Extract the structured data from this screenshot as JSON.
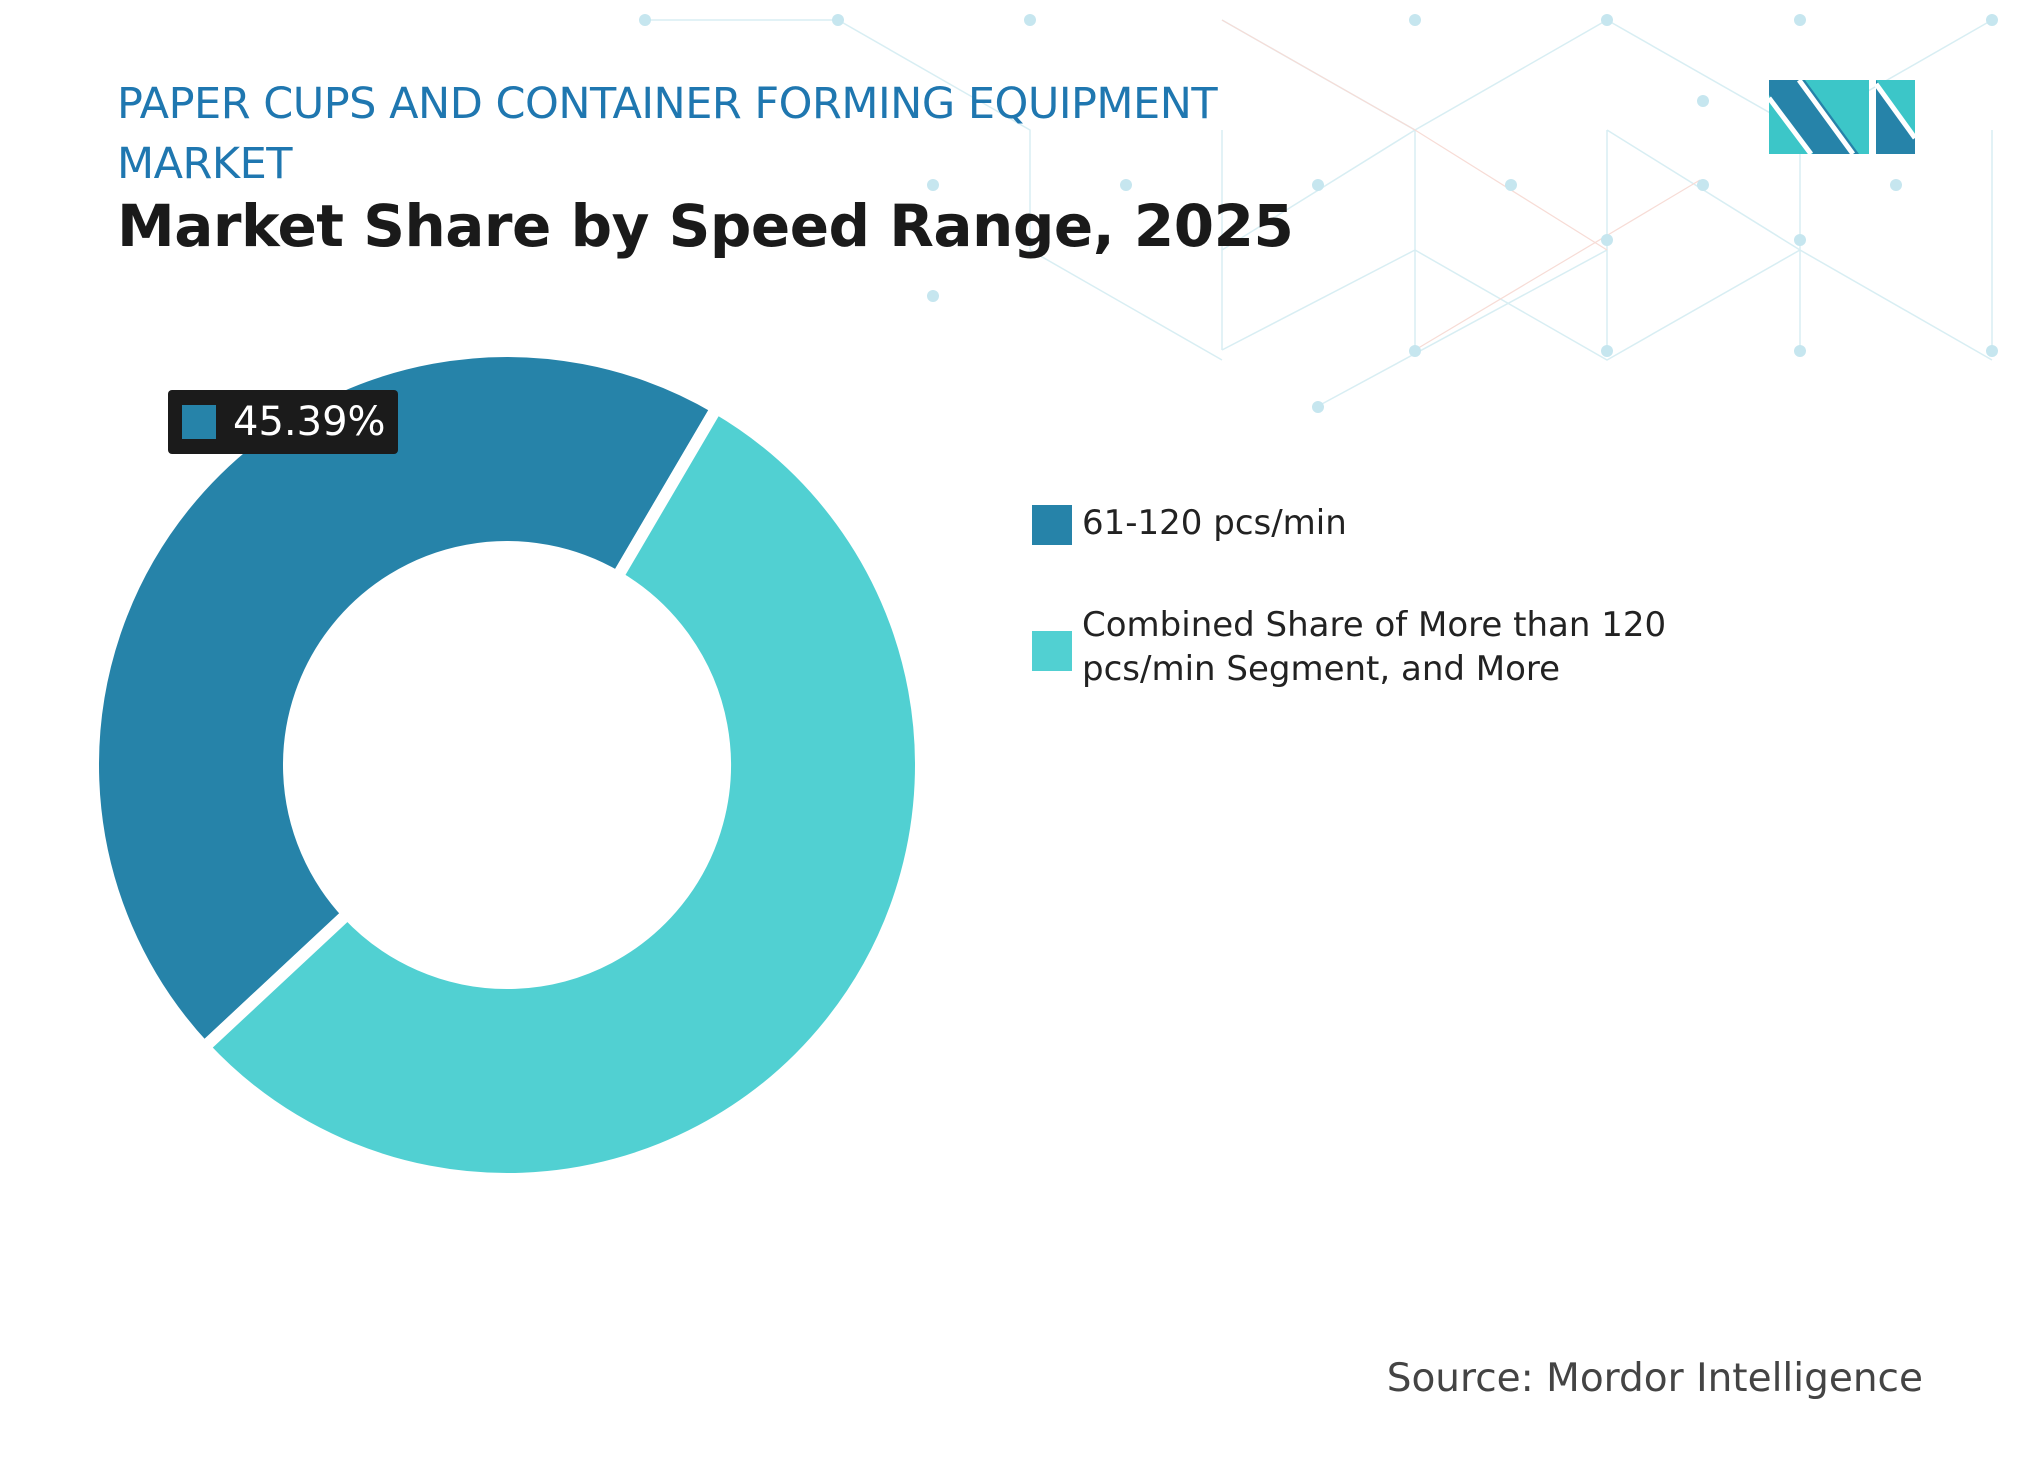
{
  "header": {
    "title": "PAPER CUPS AND CONTAINER FORMING EQUIPMENT MARKET",
    "subtitle": "Market Share by Speed Range, 2025"
  },
  "chart_data": {
    "type": "pie",
    "variant": "donut",
    "title": "Market Share by Speed Range, 2025",
    "series": [
      {
        "name": "61-120 pcs/min",
        "value": 45.39,
        "color": "#2683a9"
      },
      {
        "name": "Combined Share of More than 120 pcs/min Segment, and More",
        "value": 54.61,
        "color": "#51d0d2"
      }
    ],
    "data_labels": [
      "45.39%"
    ],
    "legend_position": "right"
  },
  "source": "Source: Mordor Intelligence",
  "logo": {
    "text": "Mordor Intelligence",
    "colors": [
      "#2683a9",
      "#3cc6c8"
    ]
  }
}
